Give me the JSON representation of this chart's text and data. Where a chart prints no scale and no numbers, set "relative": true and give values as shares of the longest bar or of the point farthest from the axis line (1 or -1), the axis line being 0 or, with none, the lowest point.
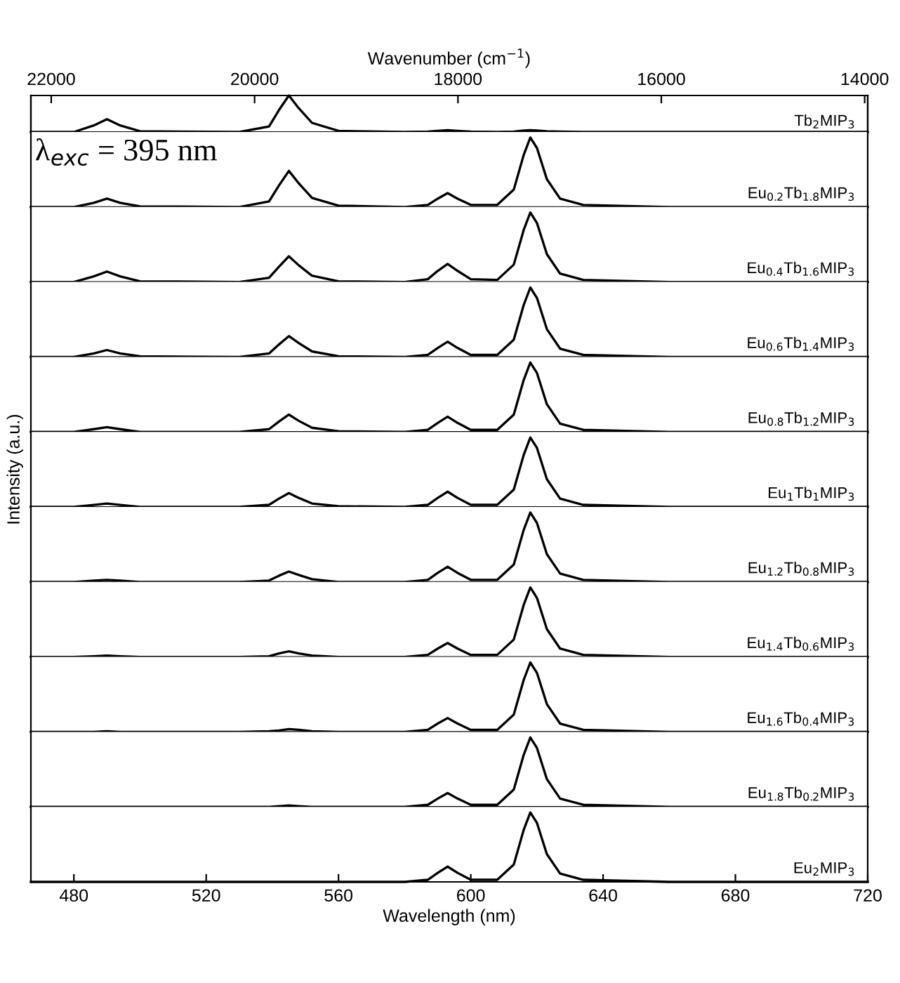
{
  "chart_data": [
    {
      "type": "line",
      "relative": true,
      "tick_labels": false,
      "x2label": "Wavenumber (cm$^{−1}$)",
      "x2lim": [
        22200,
        13970
      ],
      "x2ticks": [
        22000,
        20000,
        18000,
        16000,
        14000
      ],
      "xlim": [
        467,
        720
      ],
      "xticks": [
        480,
        520,
        560,
        600,
        640,
        680,
        720
      ],
      "x": [
        467,
        480,
        486,
        490,
        494,
        500,
        530,
        539,
        542,
        545,
        548,
        552,
        560,
        580,
        587,
        590,
        593,
        596,
        600,
        608,
        613,
        616,
        618,
        620,
        623,
        627,
        634,
        660,
        720
      ],
      "series": [
        {
          "name": "Tb$_{2}$MIP$_{3}$",
          "color": "#000000",
          "values": [
            0,
            0,
            0.18,
            0.35,
            0.18,
            0.02,
            0,
            0.15,
            0.6,
            1,
            0.65,
            0.25,
            0.03,
            0,
            0.01,
            0.03,
            0.05,
            0.03,
            0.01,
            0,
            0.01,
            0.04,
            0.05,
            0.04,
            0.02,
            0.01,
            0,
            0,
            0
          ]
        }
      ]
    },
    {
      "type": "line",
      "relative": true,
      "tick_labels": false,
      "xlim": [
        467,
        720
      ],
      "xticks": [
        480,
        520,
        560,
        600,
        640,
        680,
        720
      ],
      "annotations": [
        "λ$_{exc}$ = 395 nm"
      ],
      "x": [
        467,
        480,
        486,
        490,
        494,
        500,
        530,
        539,
        542,
        545,
        548,
        552,
        560,
        580,
        587,
        590,
        593,
        596,
        600,
        608,
        613,
        616,
        618,
        620,
        623,
        627,
        634,
        660,
        720
      ],
      "series": [
        {
          "name": "Eu$_{0.2}$Tb$_{1.8}$MIP$_{3}$",
          "color": "#000000",
          "values": [
            0,
            0,
            0.06,
            0.12,
            0.06,
            0.01,
            0,
            0.08,
            0.31,
            0.52,
            0.34,
            0.13,
            0.02,
            0,
            0.03,
            0.12,
            0.2,
            0.12,
            0.03,
            0.03,
            0.25,
            0.75,
            1,
            0.85,
            0.4,
            0.12,
            0.03,
            0,
            0
          ]
        }
      ]
    },
    {
      "type": "line",
      "relative": true,
      "tick_labels": false,
      "xlim": [
        467,
        720
      ],
      "xticks": [
        480,
        520,
        560,
        600,
        640,
        680,
        720
      ],
      "x": [
        467,
        480,
        486,
        490,
        494,
        500,
        530,
        539,
        542,
        545,
        548,
        552,
        560,
        580,
        587,
        590,
        593,
        596,
        600,
        608,
        613,
        616,
        618,
        620,
        623,
        627,
        634,
        660,
        720
      ],
      "series": [
        {
          "name": "Eu$_{0.4}$Tb$_{1.6}$MIP$_{3}$",
          "color": "#000000",
          "values": [
            0,
            0,
            0.08,
            0.15,
            0.08,
            0.01,
            0,
            0.06,
            0.22,
            0.37,
            0.24,
            0.09,
            0.01,
            0,
            0.04,
            0.16,
            0.26,
            0.16,
            0.04,
            0.03,
            0.25,
            0.75,
            1,
            0.85,
            0.4,
            0.12,
            0.03,
            0,
            0
          ]
        }
      ]
    },
    {
      "type": "line",
      "relative": true,
      "tick_labels": false,
      "xlim": [
        467,
        720
      ],
      "xticks": [
        480,
        520,
        560,
        600,
        640,
        680,
        720
      ],
      "x": [
        467,
        480,
        486,
        490,
        494,
        500,
        530,
        539,
        542,
        545,
        548,
        552,
        560,
        580,
        587,
        590,
        593,
        596,
        600,
        608,
        613,
        616,
        618,
        620,
        623,
        627,
        634,
        660,
        720
      ],
      "series": [
        {
          "name": "Eu$_{0.6}$Tb$_{1.4}$MIP$_{3}$",
          "color": "#000000",
          "values": [
            0,
            0,
            0.05,
            0.1,
            0.05,
            0.01,
            0,
            0.05,
            0.18,
            0.3,
            0.2,
            0.08,
            0.01,
            0,
            0.03,
            0.13,
            0.22,
            0.13,
            0.03,
            0.03,
            0.25,
            0.75,
            1,
            0.85,
            0.4,
            0.12,
            0.03,
            0,
            0
          ]
        }
      ]
    },
    {
      "type": "line",
      "relative": true,
      "tick_labels": false,
      "xlim": [
        467,
        720
      ],
      "xticks": [
        480,
        520,
        560,
        600,
        640,
        680,
        720
      ],
      "x": [
        467,
        480,
        486,
        490,
        494,
        500,
        530,
        539,
        542,
        545,
        548,
        552,
        560,
        580,
        587,
        590,
        593,
        596,
        600,
        608,
        613,
        616,
        618,
        620,
        623,
        627,
        634,
        660,
        720
      ],
      "series": [
        {
          "name": "Eu$_{0.8}$Tb$_{1.2}$MIP$_{3}$",
          "color": "#000000",
          "values": [
            0,
            0,
            0.04,
            0.07,
            0.04,
            0,
            0,
            0.04,
            0.15,
            0.25,
            0.16,
            0.06,
            0.01,
            0,
            0.03,
            0.13,
            0.22,
            0.13,
            0.03,
            0.03,
            0.25,
            0.75,
            1,
            0.85,
            0.4,
            0.12,
            0.03,
            0,
            0
          ]
        }
      ]
    },
    {
      "type": "line",
      "relative": true,
      "tick_labels": false,
      "xlim": [
        467,
        720
      ],
      "xticks": [
        480,
        520,
        560,
        600,
        640,
        680,
        720
      ],
      "ylabel": "Intensity (a.u.)",
      "x": [
        467,
        480,
        486,
        490,
        494,
        500,
        530,
        539,
        542,
        545,
        548,
        552,
        560,
        580,
        587,
        590,
        593,
        596,
        600,
        608,
        613,
        616,
        618,
        620,
        623,
        627,
        634,
        660,
        720
      ],
      "series": [
        {
          "name": "Eu$_{1}$Tb$_{1}$MIP$_{3}$",
          "color": "#000000",
          "values": [
            0,
            0,
            0.03,
            0.05,
            0.03,
            0,
            0,
            0.03,
            0.12,
            0.2,
            0.13,
            0.05,
            0.01,
            0,
            0.03,
            0.13,
            0.22,
            0.13,
            0.03,
            0.03,
            0.25,
            0.75,
            1,
            0.85,
            0.4,
            0.12,
            0.03,
            0,
            0
          ]
        }
      ]
    },
    {
      "type": "line",
      "relative": true,
      "tick_labels": false,
      "xlim": [
        467,
        720
      ],
      "xticks": [
        480,
        520,
        560,
        600,
        640,
        680,
        720
      ],
      "x": [
        467,
        480,
        486,
        490,
        494,
        500,
        530,
        539,
        542,
        545,
        548,
        552,
        560,
        580,
        587,
        590,
        593,
        596,
        600,
        608,
        613,
        616,
        618,
        620,
        623,
        627,
        634,
        660,
        720
      ],
      "series": [
        {
          "name": "Eu$_{1.2}$Tb$_{0.8}$MIP$_{3}$",
          "color": "#000000",
          "values": [
            0,
            0,
            0.02,
            0.03,
            0.02,
            0,
            0,
            0.02,
            0.09,
            0.15,
            0.1,
            0.04,
            0,
            0,
            0.03,
            0.13,
            0.22,
            0.13,
            0.03,
            0.03,
            0.25,
            0.75,
            1,
            0.85,
            0.4,
            0.12,
            0.03,
            0,
            0
          ]
        }
      ]
    },
    {
      "type": "line",
      "relative": true,
      "tick_labels": false,
      "xlim": [
        467,
        720
      ],
      "xticks": [
        480,
        520,
        560,
        600,
        640,
        680,
        720
      ],
      "x": [
        467,
        480,
        486,
        490,
        494,
        500,
        530,
        539,
        542,
        545,
        548,
        552,
        560,
        580,
        587,
        590,
        593,
        596,
        600,
        608,
        613,
        616,
        618,
        620,
        623,
        627,
        634,
        660,
        720
      ],
      "series": [
        {
          "name": "Eu$_{1.4}$Tb$_{0.6}$MIP$_{3}$",
          "color": "#000000",
          "values": [
            0,
            0,
            0.01,
            0.02,
            0.01,
            0,
            0,
            0.01,
            0.05,
            0.08,
            0.05,
            0.02,
            0,
            0,
            0.03,
            0.12,
            0.2,
            0.12,
            0.03,
            0.03,
            0.25,
            0.75,
            1,
            0.85,
            0.4,
            0.12,
            0.03,
            0,
            0
          ]
        }
      ]
    },
    {
      "type": "line",
      "relative": true,
      "tick_labels": false,
      "xlim": [
        467,
        720
      ],
      "xticks": [
        480,
        520,
        560,
        600,
        640,
        680,
        720
      ],
      "x": [
        467,
        480,
        486,
        490,
        494,
        500,
        530,
        539,
        542,
        545,
        548,
        552,
        560,
        580,
        587,
        590,
        593,
        596,
        600,
        608,
        613,
        616,
        618,
        620,
        623,
        627,
        634,
        660,
        720
      ],
      "series": [
        {
          "name": "Eu$_{1.6}$Tb$_{0.4}$MIP$_{3}$",
          "color": "#000000",
          "values": [
            0,
            0,
            0,
            0.01,
            0,
            0,
            0,
            0.01,
            0.02,
            0.04,
            0.03,
            0.01,
            0,
            0,
            0.03,
            0.12,
            0.2,
            0.12,
            0.03,
            0.03,
            0.25,
            0.75,
            1,
            0.85,
            0.4,
            0.12,
            0.03,
            0,
            0
          ]
        }
      ]
    },
    {
      "type": "line",
      "relative": true,
      "tick_labels": false,
      "xlim": [
        467,
        720
      ],
      "xticks": [
        480,
        520,
        560,
        600,
        640,
        680,
        720
      ],
      "x": [
        467,
        480,
        486,
        490,
        494,
        500,
        530,
        539,
        542,
        545,
        548,
        552,
        560,
        580,
        587,
        590,
        593,
        596,
        600,
        608,
        613,
        616,
        618,
        620,
        623,
        627,
        634,
        660,
        720
      ],
      "series": [
        {
          "name": "Eu$_{1.8}$Tb$_{0.2}$MIP$_{3}$",
          "color": "#000000",
          "values": [
            0,
            0,
            0,
            0,
            0,
            0,
            0,
            0,
            0.01,
            0.02,
            0.01,
            0,
            0,
            0,
            0.03,
            0.12,
            0.2,
            0.12,
            0.03,
            0.03,
            0.25,
            0.75,
            1,
            0.85,
            0.4,
            0.12,
            0.03,
            0,
            0
          ]
        }
      ]
    },
    {
      "type": "line",
      "relative": true,
      "tick_labels": "x",
      "xlim": [
        467,
        720
      ],
      "xticks": [
        480,
        520,
        560,
        600,
        640,
        680,
        720
      ],
      "xlabel": "Wavelength (nm)",
      "x": [
        467,
        480,
        486,
        490,
        494,
        500,
        530,
        539,
        542,
        545,
        548,
        552,
        560,
        580,
        587,
        590,
        593,
        596,
        600,
        608,
        613,
        616,
        618,
        620,
        623,
        627,
        634,
        660,
        720
      ],
      "series": [
        {
          "name": "Eu$_{2}$MIP$_{3}$",
          "color": "#000000",
          "values": [
            0,
            0,
            0,
            0,
            0,
            0,
            0,
            0,
            0,
            0,
            0,
            0,
            0,
            0,
            0.03,
            0.13,
            0.22,
            0.13,
            0.03,
            0.03,
            0.25,
            0.75,
            1,
            0.85,
            0.4,
            0.12,
            0.03,
            0,
            0
          ]
        }
      ]
    }
  ]
}
